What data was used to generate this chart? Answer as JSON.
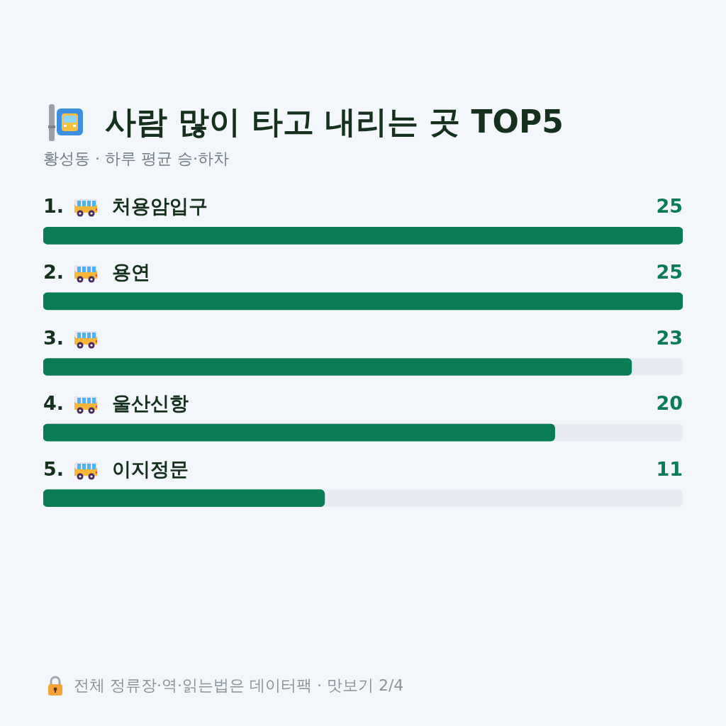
{
  "chart_data": {
    "type": "bar",
    "orientation": "horizontal",
    "title": "사람 많이 타고 내리는 곳 TOP5",
    "subtitle": "황성동 · 하루 평균 승·하차",
    "categories": [
      "1. 처용암입구",
      "2. 용연",
      "3.",
      "4. 울산신항",
      "5. 이지정문"
    ],
    "values": [
      25,
      25,
      23,
      20,
      11
    ],
    "color": "#0a7c55",
    "xlim": [
      0,
      25
    ],
    "data_labels": true,
    "tick_labels": "y",
    "annotations": [
      "전체 정류장·역·읽는법은 데이터팩 · 맛보기 2/4"
    ]
  }
}
